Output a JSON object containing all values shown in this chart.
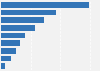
{
  "values": [
    29.5,
    18.5,
    14.5,
    11.5,
    8.0,
    6.5,
    5.0,
    3.2,
    1.5
  ],
  "bar_color": "#3375b7",
  "background_color": "#f2f2f2",
  "grid_color": "#ffffff",
  "xlim": [
    0,
    33
  ],
  "figsize": [
    1.0,
    0.71
  ],
  "dpi": 100
}
